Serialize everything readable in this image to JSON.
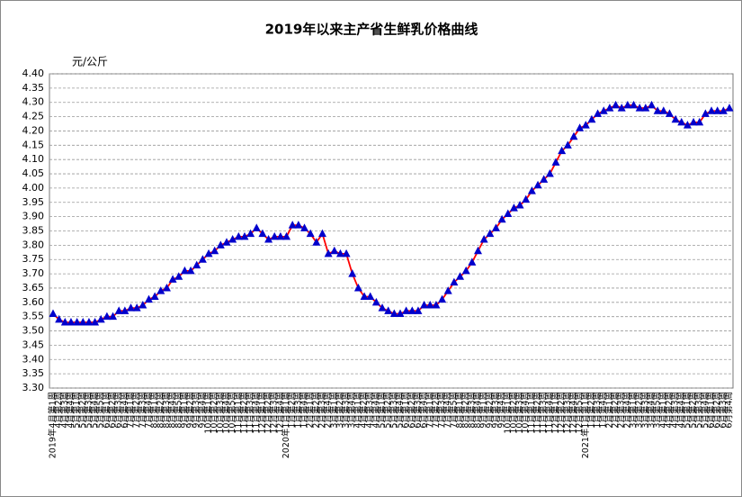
{
  "chart_data": {
    "type": "line",
    "title": "2019年以来主产省生鲜乳价格曲线",
    "y_label": "元/公斤",
    "categories": [
      "2019年4月第1周",
      "4月第2周",
      "4月第3周",
      "4月第4周",
      "5月第1周",
      "5月第2周",
      "5月第3周",
      "5月第4周",
      "5月第5周",
      "6月第1周",
      "6月第2周",
      "6月第3周",
      "6月第4周",
      "7月第1周",
      "7月第2周",
      "7月第3周",
      "7月第4周",
      "8月第1周",
      "8月第2周",
      "8月第3周",
      "8月第4周",
      "8月第5周",
      "9月第1周",
      "9月第2周",
      "9月第3周",
      "9月第4周",
      "10月第1周",
      "10月第2周",
      "10月第3周",
      "10月第4周",
      "10月第5周",
      "11月第1周",
      "11月第2周",
      "11月第3周",
      "11月第4周",
      "12月第1周",
      "12月第2周",
      "12月第3周",
      "12月第4周",
      "2020年1月第1周",
      "1月第2周",
      "1月第3周",
      "1月第4周",
      "2月第1周",
      "2月第2周",
      "2月第3周",
      "2月第4周",
      "3月第1周",
      "3月第2周",
      "3月第3周",
      "3月第4周",
      "4月第1周",
      "4月第2周",
      "4月第3周",
      "4月第4周",
      "5月第1周",
      "5月第2周",
      "5月第3周",
      "5月第4周",
      "6月第1周",
      "6月第2周",
      "6月第3周",
      "6月第4周",
      "7月第1周",
      "7月第2周",
      "7月第3周",
      "7月第4周",
      "7月第5周",
      "8月第1周",
      "8月第2周",
      "8月第3周",
      "8月第4周",
      "9月第1周",
      "9月第2周",
      "9月第3周",
      "9月第4周",
      "10月第1周",
      "10月第2周",
      "10月第3周",
      "10月第4周",
      "11月第1周",
      "11月第2周",
      "11月第3周",
      "11月第4周",
      "12月第1周",
      "12月第2周",
      "12月第3周",
      "12月第4周",
      "12月第5周",
      "2021年1月第1周",
      "1月第2周",
      "1月第3周",
      "1月第4周",
      "2月第1周",
      "2月第2周",
      "2月第3周",
      "2月第4周",
      "3月第1周",
      "3月第2周",
      "3月第3周",
      "3月第4周",
      "3月第5周",
      "4月第1周",
      "4月第2周",
      "4月第3周",
      "4月第4周",
      "5月第1周",
      "5月第2周",
      "5月第3周",
      "5月第4周",
      "6月第1周",
      "6月第2周",
      "6月第3周",
      "6月第4周"
    ],
    "series": [
      {
        "line_color": "#ff0000",
        "color": "#0000cc",
        "values": [
          3.56,
          3.54,
          3.53,
          3.53,
          3.53,
          3.53,
          3.53,
          3.53,
          3.54,
          3.55,
          3.55,
          3.57,
          3.57,
          3.58,
          3.58,
          3.59,
          3.61,
          3.62,
          3.64,
          3.65,
          3.68,
          3.69,
          3.71,
          3.71,
          3.73,
          3.75,
          3.77,
          3.78,
          3.8,
          3.81,
          3.82,
          3.83,
          3.83,
          3.84,
          3.86,
          3.84,
          3.82,
          3.83,
          3.83,
          3.83,
          3.87,
          3.87,
          3.86,
          3.84,
          3.81,
          3.84,
          3.77,
          3.78,
          3.77,
          3.77,
          3.7,
          3.65,
          3.62,
          3.62,
          3.6,
          3.58,
          3.57,
          3.56,
          3.56,
          3.57,
          3.57,
          3.57,
          3.59,
          3.59,
          3.59,
          3.61,
          3.64,
          3.67,
          3.69,
          3.71,
          3.74,
          3.78,
          3.82,
          3.84,
          3.86,
          3.89,
          3.91,
          3.93,
          3.94,
          3.96,
          3.99,
          4.01,
          4.03,
          4.05,
          4.09,
          4.13,
          4.15,
          4.18,
          4.21,
          4.22,
          4.24,
          4.26,
          4.27,
          4.28,
          4.29,
          4.28,
          4.29,
          4.29,
          4.28,
          4.28,
          4.29,
          4.27,
          4.27,
          4.26,
          4.24,
          4.23,
          4.22,
          4.23,
          4.23,
          4.26,
          4.27,
          4.27,
          4.27,
          4.28
        ]
      }
    ],
    "ylim": [
      3.3,
      4.4
    ],
    "yticks": [
      {
        "value": 3.3,
        "label": "3.30"
      },
      {
        "value": 3.35,
        "label": "3.35"
      },
      {
        "value": 3.4,
        "label": "3.40"
      },
      {
        "value": 3.45,
        "label": "3.45"
      },
      {
        "value": 3.5,
        "label": "3.50"
      },
      {
        "value": 3.55,
        "label": "3.55"
      },
      {
        "value": 3.6,
        "label": "3.60"
      },
      {
        "value": 3.65,
        "label": "3.65"
      },
      {
        "value": 3.7,
        "label": "3.70"
      },
      {
        "value": 3.75,
        "label": "3.75"
      },
      {
        "value": 3.8,
        "label": "3.80"
      },
      {
        "value": 3.85,
        "label": "3.85"
      },
      {
        "value": 3.9,
        "label": "3.90"
      },
      {
        "value": 3.95,
        "label": "3.95"
      },
      {
        "value": 4.0,
        "label": "4.00"
      },
      {
        "value": 4.05,
        "label": "4.05"
      },
      {
        "value": 4.1,
        "label": "4.10"
      },
      {
        "value": 4.15,
        "label": "4.15"
      },
      {
        "value": 4.2,
        "label": "4.20"
      },
      {
        "value": 4.25,
        "label": "4.25"
      },
      {
        "value": 4.3,
        "label": "4.30"
      },
      {
        "value": 4.35,
        "label": "4.35"
      },
      {
        "value": 4.4,
        "label": "4.40"
      }
    ],
    "grid": true
  }
}
